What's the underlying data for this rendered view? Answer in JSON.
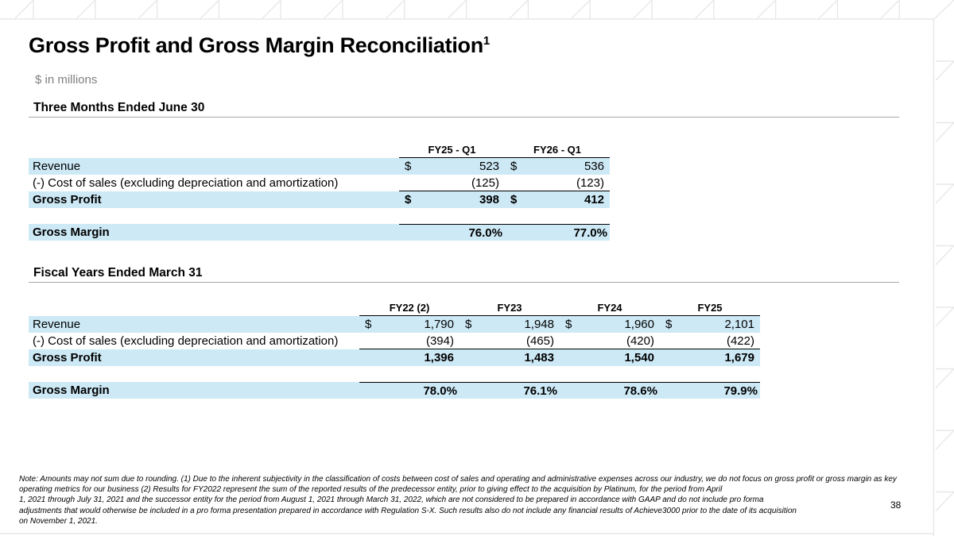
{
  "slide": {
    "title": "Gross Profit and Gross Margin Reconciliation",
    "title_superscript": "1",
    "subtitle": "$ in millions",
    "page_number": "38"
  },
  "colors": {
    "row_highlight": "#cde9f6",
    "section_divider": "#a9a9a9",
    "table_border": "#000000",
    "pattern_gray": "#e8e8eb"
  },
  "sections": [
    {
      "heading": "Three Months Ended June 30",
      "table": {
        "columns": [
          "FY25 - Q1",
          "FY26 - Q1"
        ],
        "rows": [
          {
            "label": "Revenue",
            "dollar": "$",
            "values": [
              "523",
              "536"
            ]
          },
          {
            "label": "(-) Cost of sales (excluding depreciation and amortization)",
            "values": [
              "(125)",
              "(123)"
            ]
          },
          {
            "label": "Gross Profit",
            "dollar": "$",
            "values": [
              "398",
              "412"
            ]
          },
          {
            "label": "Gross Margin",
            "values": [
              "76.0%",
              "77.0%"
            ]
          }
        ]
      }
    },
    {
      "heading": "Fiscal Years Ended March 31",
      "table": {
        "columns": [
          "FY22 (2)",
          "FY23",
          "FY24",
          "FY25"
        ],
        "rows": [
          {
            "label": "Revenue",
            "dollar": "$",
            "values": [
              "1,790",
              "1,948",
              "1,960",
              "2,101"
            ]
          },
          {
            "label": "(-) Cost of sales (excluding depreciation and amortization)",
            "values": [
              "(394)",
              "(465)",
              "(420)",
              "(422)"
            ]
          },
          {
            "label": "Gross Profit",
            "values": [
              "1,396",
              "1,483",
              "1,540",
              "1,679"
            ]
          },
          {
            "label": "Gross Margin",
            "values": [
              "78.0%",
              "76.1%",
              "78.6%",
              "79.9%"
            ]
          }
        ]
      }
    }
  ],
  "footnote_lines": [
    "Note: Amounts may not sum due to rounding. (1) Due to the inherent subjectivity in the classification of costs between cost of sales and operating and administrative expenses across our industry, we do not focus on gross profit or gross margin as key",
    "operating metrics for our business (2) Results for FY2022 represent the sum of the reported results of the predecessor entity, prior to giving effect to the acquisition by Platinum, for the period from April",
    "1, 2021 through July 31, 2021 and the successor entity for the period from August 1, 2021 through March 31, 2022, which are not considered to be prepared in accordance with GAAP and do not include pro forma",
    "adjustments that would otherwise be included in a pro forma presentation prepared in accordance with Regulation S-X. Such results also do not include any financial results of Achieve3000 prior to the date of its acquisition",
    "on November 1, 2021."
  ]
}
